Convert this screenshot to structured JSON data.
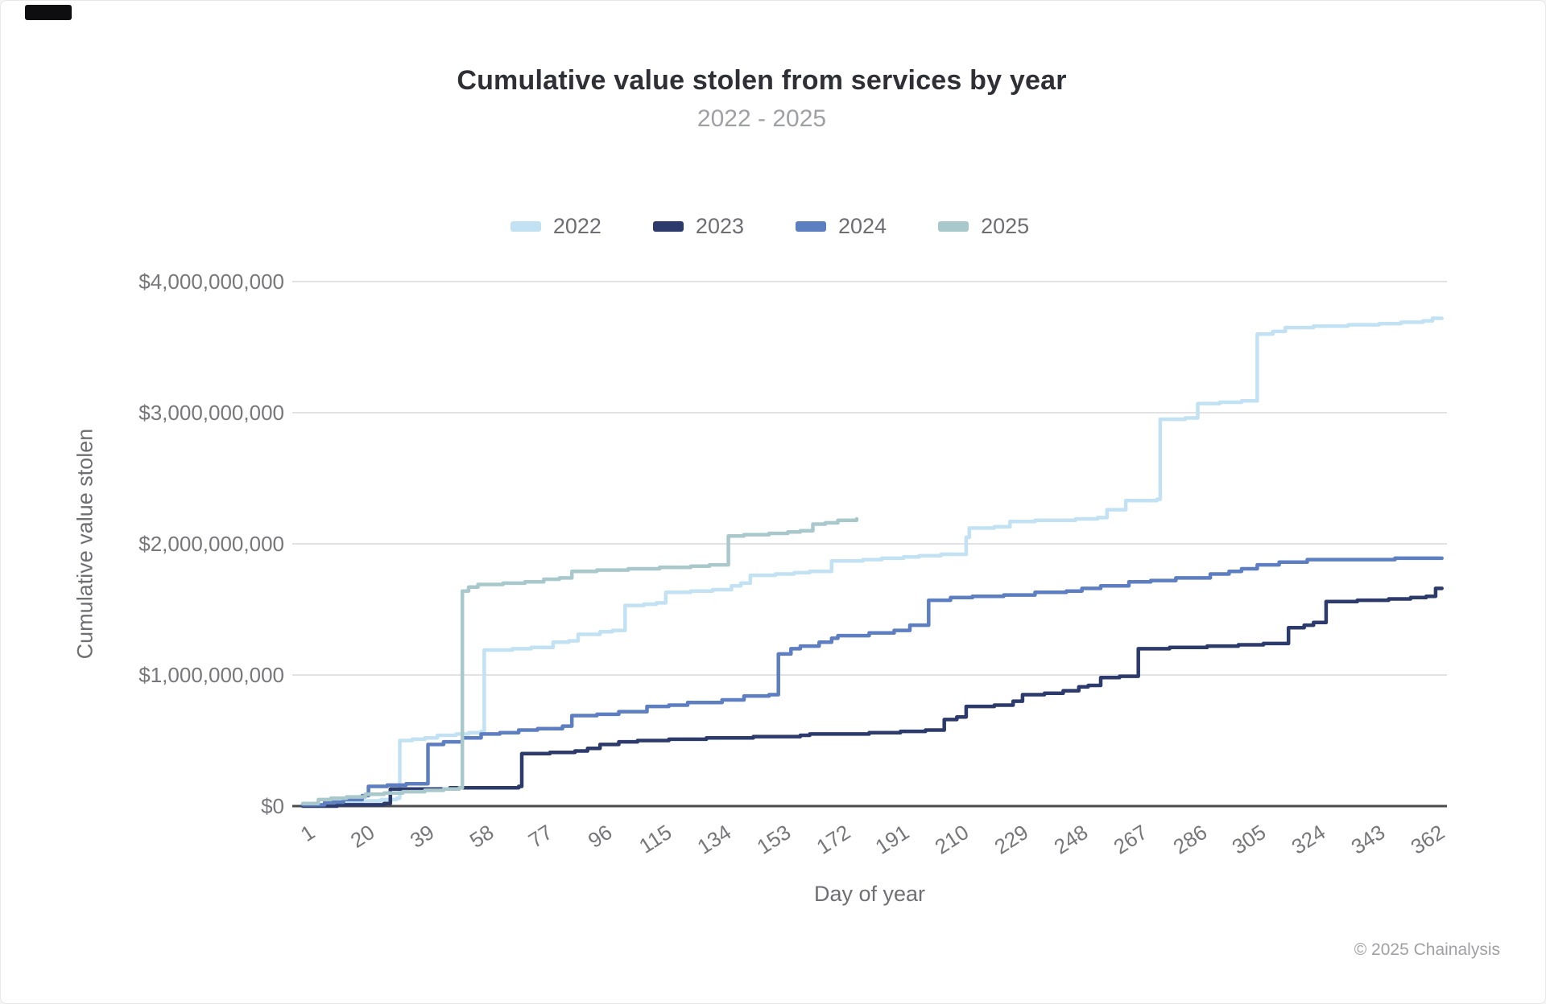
{
  "page": {
    "background": "#ffffff",
    "border_color": "#e8e8ea"
  },
  "header": {
    "title": "Cumulative value stolen from services by year",
    "subtitle": "2022 - 2025"
  },
  "footer": {
    "copyright": "© 2025 Chainalysis"
  },
  "colors": {
    "title_text": "#2f2f36",
    "subtitle_text": "#9fa0a4",
    "axis_text": "#77777b",
    "gridline": "#d9d9db",
    "baseline": "#4b4b4d",
    "series_2022": "#c2e2f4",
    "series_2023": "#2c3b6c",
    "series_2024": "#5d7fc1",
    "series_2025": "#a9c8cc"
  },
  "chart_data": {
    "type": "line",
    "interpolation": "step-after",
    "title": "Cumulative value stolen from services by year",
    "subtitle": "2022 - 2025",
    "xlabel": "Day of year",
    "ylabel": "Cumulative value stolen",
    "value_unit": "USD billions",
    "xlim": [
      1,
      366
    ],
    "ylim_usd": [
      0,
      4000000000
    ],
    "grid": true,
    "legend_position": "top-center",
    "x_ticks": [
      1,
      20,
      39,
      58,
      77,
      96,
      115,
      134,
      153,
      172,
      191,
      210,
      229,
      248,
      267,
      286,
      305,
      324,
      343,
      362
    ],
    "y_ticks": [
      {
        "value_billions": 0,
        "label": "$0"
      },
      {
        "value_billions": 1,
        "label": "$1,000,000,000"
      },
      {
        "value_billions": 2,
        "label": "$2,000,000,000"
      },
      {
        "value_billions": 3,
        "label": "$3,000,000,000"
      },
      {
        "value_billions": 4,
        "label": "$4,000,000,000"
      }
    ],
    "series": [
      {
        "name": "2022",
        "color": "#c2e2f4",
        "points_day_billions": [
          [
            1,
            0.01
          ],
          [
            8,
            0.02
          ],
          [
            15,
            0.03
          ],
          [
            20,
            0.04
          ],
          [
            26,
            0.05
          ],
          [
            31,
            0.06
          ],
          [
            32,
            0.5
          ],
          [
            36,
            0.51
          ],
          [
            40,
            0.52
          ],
          [
            44,
            0.54
          ],
          [
            50,
            0.55
          ],
          [
            54,
            0.56
          ],
          [
            58,
            0.57
          ],
          [
            59,
            1.19
          ],
          [
            68,
            1.2
          ],
          [
            74,
            1.21
          ],
          [
            81,
            1.25
          ],
          [
            86,
            1.26
          ],
          [
            89,
            1.31
          ],
          [
            96,
            1.33
          ],
          [
            100,
            1.34
          ],
          [
            104,
            1.53
          ],
          [
            110,
            1.54
          ],
          [
            114,
            1.55
          ],
          [
            117,
            1.63
          ],
          [
            125,
            1.64
          ],
          [
            132,
            1.65
          ],
          [
            138,
            1.68
          ],
          [
            141,
            1.7
          ],
          [
            144,
            1.76
          ],
          [
            152,
            1.77
          ],
          [
            158,
            1.78
          ],
          [
            163,
            1.79
          ],
          [
            170,
            1.87
          ],
          [
            180,
            1.88
          ],
          [
            186,
            1.89
          ],
          [
            193,
            1.9
          ],
          [
            198,
            1.91
          ],
          [
            205,
            1.92
          ],
          [
            213,
            2.05
          ],
          [
            214,
            2.12
          ],
          [
            222,
            2.13
          ],
          [
            227,
            2.17
          ],
          [
            235,
            2.18
          ],
          [
            248,
            2.19
          ],
          [
            255,
            2.2
          ],
          [
            258,
            2.26
          ],
          [
            264,
            2.33
          ],
          [
            274,
            2.34
          ],
          [
            275,
            2.95
          ],
          [
            283,
            2.96
          ],
          [
            287,
            3.07
          ],
          [
            294,
            3.08
          ],
          [
            301,
            3.09
          ],
          [
            306,
            3.6
          ],
          [
            311,
            3.62
          ],
          [
            315,
            3.65
          ],
          [
            324,
            3.66
          ],
          [
            335,
            3.67
          ],
          [
            345,
            3.68
          ],
          [
            352,
            3.69
          ],
          [
            359,
            3.7
          ],
          [
            362,
            3.72
          ],
          [
            365,
            3.72
          ]
        ]
      },
      {
        "name": "2023",
        "color": "#2c3b6c",
        "points_day_billions": [
          [
            1,
            0.0
          ],
          [
            12,
            0.01
          ],
          [
            20,
            0.01
          ],
          [
            27,
            0.02
          ],
          [
            29,
            0.13
          ],
          [
            38,
            0.13
          ],
          [
            48,
            0.14
          ],
          [
            60,
            0.14
          ],
          [
            70,
            0.15
          ],
          [
            71,
            0.4
          ],
          [
            80,
            0.41
          ],
          [
            88,
            0.42
          ],
          [
            92,
            0.44
          ],
          [
            96,
            0.47
          ],
          [
            102,
            0.49
          ],
          [
            108,
            0.5
          ],
          [
            118,
            0.51
          ],
          [
            130,
            0.52
          ],
          [
            145,
            0.53
          ],
          [
            160,
            0.54
          ],
          [
            163,
            0.55
          ],
          [
            172,
            0.55
          ],
          [
            182,
            0.56
          ],
          [
            192,
            0.57
          ],
          [
            200,
            0.58
          ],
          [
            206,
            0.66
          ],
          [
            210,
            0.68
          ],
          [
            213,
            0.76
          ],
          [
            222,
            0.77
          ],
          [
            228,
            0.8
          ],
          [
            231,
            0.85
          ],
          [
            238,
            0.86
          ],
          [
            244,
            0.88
          ],
          [
            249,
            0.91
          ],
          [
            252,
            0.92
          ],
          [
            256,
            0.98
          ],
          [
            262,
            0.99
          ],
          [
            268,
            1.2
          ],
          [
            278,
            1.21
          ],
          [
            290,
            1.22
          ],
          [
            300,
            1.23
          ],
          [
            308,
            1.24
          ],
          [
            316,
            1.36
          ],
          [
            321,
            1.38
          ],
          [
            324,
            1.4
          ],
          [
            328,
            1.56
          ],
          [
            338,
            1.57
          ],
          [
            348,
            1.58
          ],
          [
            355,
            1.59
          ],
          [
            360,
            1.6
          ],
          [
            363,
            1.66
          ],
          [
            365,
            1.66
          ]
        ]
      },
      {
        "name": "2024",
        "color": "#5d7fc1",
        "points_day_billions": [
          [
            1,
            0.01
          ],
          [
            8,
            0.03
          ],
          [
            14,
            0.05
          ],
          [
            20,
            0.08
          ],
          [
            22,
            0.15
          ],
          [
            28,
            0.16
          ],
          [
            34,
            0.17
          ],
          [
            40,
            0.17
          ],
          [
            41,
            0.47
          ],
          [
            46,
            0.49
          ],
          [
            52,
            0.52
          ],
          [
            58,
            0.55
          ],
          [
            64,
            0.56
          ],
          [
            70,
            0.58
          ],
          [
            76,
            0.59
          ],
          [
            84,
            0.61
          ],
          [
            87,
            0.69
          ],
          [
            95,
            0.7
          ],
          [
            102,
            0.72
          ],
          [
            111,
            0.76
          ],
          [
            118,
            0.77
          ],
          [
            124,
            0.79
          ],
          [
            135,
            0.81
          ],
          [
            142,
            0.84
          ],
          [
            150,
            0.85
          ],
          [
            153,
            1.16
          ],
          [
            157,
            1.2
          ],
          [
            160,
            1.22
          ],
          [
            166,
            1.25
          ],
          [
            170,
            1.28
          ],
          [
            172,
            1.3
          ],
          [
            182,
            1.32
          ],
          [
            190,
            1.34
          ],
          [
            195,
            1.38
          ],
          [
            201,
            1.57
          ],
          [
            208,
            1.59
          ],
          [
            215,
            1.6
          ],
          [
            225,
            1.61
          ],
          [
            235,
            1.63
          ],
          [
            245,
            1.64
          ],
          [
            250,
            1.66
          ],
          [
            256,
            1.68
          ],
          [
            265,
            1.71
          ],
          [
            272,
            1.72
          ],
          [
            280,
            1.74
          ],
          [
            291,
            1.77
          ],
          [
            297,
            1.79
          ],
          [
            301,
            1.81
          ],
          [
            306,
            1.84
          ],
          [
            313,
            1.86
          ],
          [
            322,
            1.88
          ],
          [
            335,
            1.88
          ],
          [
            350,
            1.89
          ],
          [
            365,
            1.89
          ]
        ]
      },
      {
        "name": "2025",
        "color": "#a9c8cc",
        "points_day_billions": [
          [
            1,
            0.02
          ],
          [
            6,
            0.05
          ],
          [
            10,
            0.06
          ],
          [
            15,
            0.07
          ],
          [
            21,
            0.09
          ],
          [
            27,
            0.1
          ],
          [
            33,
            0.11
          ],
          [
            40,
            0.12
          ],
          [
            46,
            0.13
          ],
          [
            51,
            0.14
          ],
          [
            52,
            1.64
          ],
          [
            54,
            1.67
          ],
          [
            57,
            1.69
          ],
          [
            65,
            1.7
          ],
          [
            72,
            1.71
          ],
          [
            78,
            1.73
          ],
          [
            83,
            1.74
          ],
          [
            87,
            1.79
          ],
          [
            95,
            1.8
          ],
          [
            105,
            1.81
          ],
          [
            115,
            1.82
          ],
          [
            125,
            1.83
          ],
          [
            131,
            1.84
          ],
          [
            137,
            2.06
          ],
          [
            142,
            2.07
          ],
          [
            150,
            2.08
          ],
          [
            156,
            2.09
          ],
          [
            160,
            2.1
          ],
          [
            164,
            2.15
          ],
          [
            168,
            2.16
          ],
          [
            172,
            2.18
          ],
          [
            178,
            2.19
          ]
        ]
      }
    ]
  }
}
